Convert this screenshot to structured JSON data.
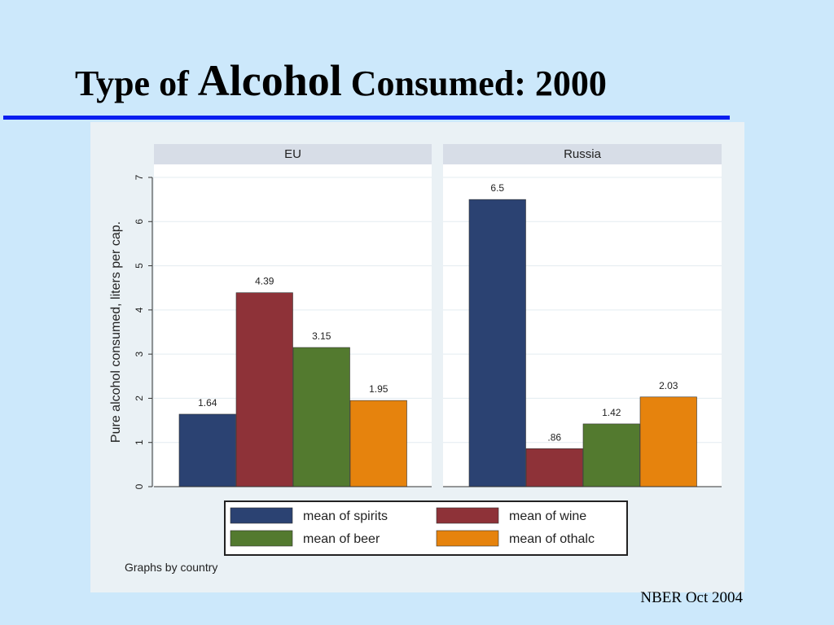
{
  "slide": {
    "title_word1": "Type of",
    "title_word2": "Alcohol",
    "title_word3": "Consumed: 2000",
    "footer": "NBER Oct 2004"
  },
  "colors": {
    "background": "#cce8fb",
    "rule": "#0a1ef0",
    "spirits": "#2b4272",
    "wine": "#8e3238",
    "beer": "#537a2f",
    "othalc": "#e6830d"
  },
  "chart_data": {
    "type": "bar",
    "ylabel": "Pure alcohol consumed, liters per cap.",
    "ylim": [
      0,
      7
    ],
    "yticks": [
      "0",
      "1",
      "2",
      "3",
      "4",
      "5",
      "6",
      "7"
    ],
    "grid": true,
    "legend_position": "bottom",
    "note": "Graphs by country",
    "legend": [
      "mean of spirits",
      "mean of wine",
      "mean of beer",
      "mean of othalc"
    ],
    "panels": [
      {
        "name": "EU",
        "values": [
          1.64,
          4.39,
          3.15,
          1.95
        ],
        "labels": [
          "1.64",
          "4.39",
          "3.15",
          "1.95"
        ]
      },
      {
        "name": "Russia",
        "values": [
          6.5,
          0.86,
          1.42,
          2.03
        ],
        "labels": [
          "6.5",
          ".86",
          "1.42",
          "2.03"
        ]
      }
    ]
  }
}
